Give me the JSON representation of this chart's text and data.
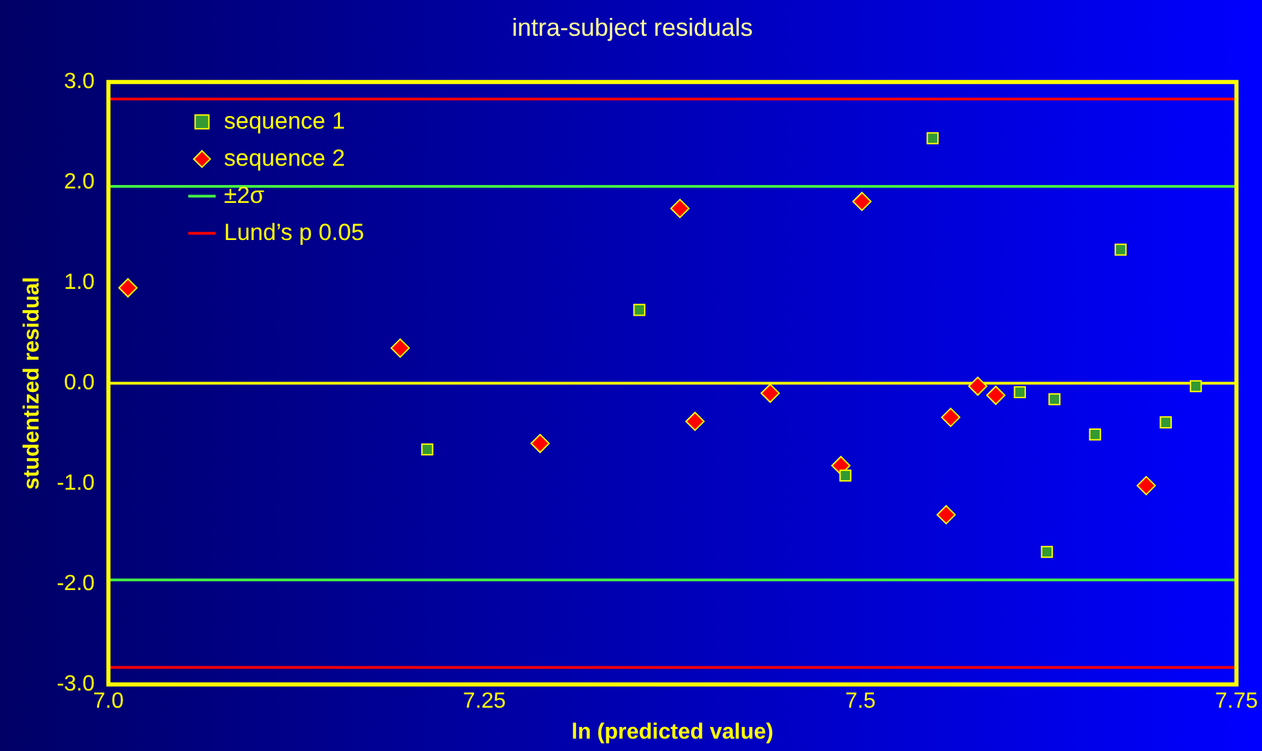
{
  "chart_data": {
    "type": "scatter",
    "title": "intra-subject residuals",
    "xlabel": "ln (predicted value)",
    "ylabel": "studentized residual",
    "series": [
      {
        "name": "sequence 1",
        "color": "#339933",
        "marker": "square",
        "x": [
          7.212,
          7.353,
          7.49,
          7.548,
          7.606,
          7.629,
          7.624,
          7.656,
          7.673,
          7.703,
          7.723
        ],
        "values": [
          -0.66,
          0.73,
          -0.92,
          2.44,
          -0.09,
          -0.16,
          -1.68,
          -0.51,
          1.33,
          -0.39,
          -0.03
        ]
      },
      {
        "name": "sequence 2",
        "color": "#ff0000",
        "marker": "diamond",
        "x": [
          7.013,
          7.194,
          7.287,
          7.38,
          7.39,
          7.44,
          7.487,
          7.501,
          7.56,
          7.557,
          7.578,
          7.59,
          7.69
        ],
        "values": [
          0.95,
          0.35,
          -0.6,
          1.74,
          -0.38,
          -0.1,
          -0.82,
          1.81,
          -0.34,
          -1.31,
          -0.03,
          -0.12,
          -1.02
        ]
      }
    ],
    "xlim": [
      7.0,
      7.75
    ],
    "xticks": [
      {
        "value": 7.0,
        "label": "7.0"
      },
      7.25,
      7.5,
      7.75
    ],
    "ylim": [
      -3,
      3
    ],
    "yticks": [
      {
        "value": -3,
        "label": "-3.0"
      },
      {
        "value": -2,
        "label": "-2.0"
      },
      {
        "value": -1,
        "label": "-1.0"
      },
      {
        "value": 0,
        "label": "0.0"
      },
      {
        "value": 1,
        "label": "1.0"
      },
      {
        "value": 2,
        "label": "2.0"
      },
      {
        "value": 3,
        "label": "3.0"
      }
    ],
    "ref_lines": [
      {
        "axis": "y",
        "value": 0,
        "color": "#ffff00"
      },
      {
        "axis": "y",
        "value": 1.96,
        "label": "±2σ",
        "color": "#44ee44"
      },
      {
        "axis": "y",
        "value": -1.96,
        "color": "#44ee44"
      },
      {
        "axis": "y",
        "value": 2.83,
        "label": "Lund’s p 0.05",
        "color": "#ff0000"
      },
      {
        "axis": "y",
        "value": -2.83,
        "color": "#ff0000"
      }
    ],
    "grid": false,
    "legend": "top left"
  }
}
